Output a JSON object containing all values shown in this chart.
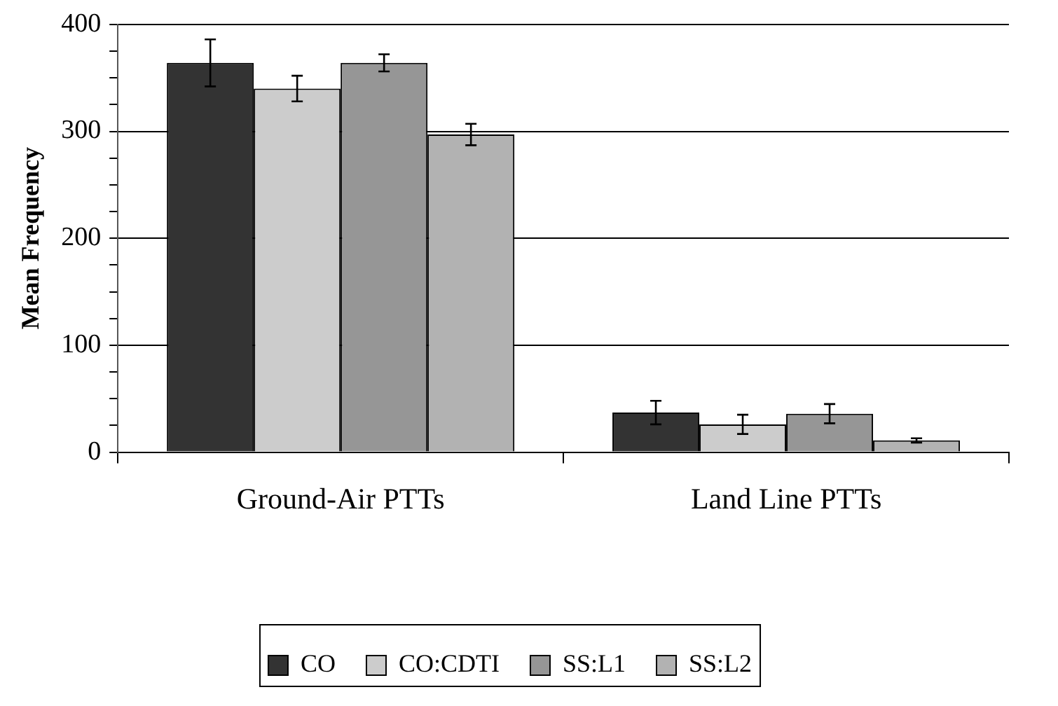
{
  "chart_data": {
    "type": "bar",
    "ylabel": "Mean Frequency",
    "categories": [
      "Ground-Air PTTs",
      "Land Line PTTs"
    ],
    "series": [
      {
        "name": "CO",
        "color": "#333333",
        "values": [
          364,
          37
        ],
        "errors": [
          22,
          11
        ]
      },
      {
        "name": "CO:CDTI",
        "color": "#cccccc",
        "values": [
          340,
          26
        ],
        "errors": [
          12,
          9
        ]
      },
      {
        "name": "SS:L1",
        "color": "#969696",
        "values": [
          364,
          36
        ],
        "errors": [
          8,
          9
        ]
      },
      {
        "name": "SS:L2",
        "color": "#b2b2b2",
        "values": [
          297,
          11
        ],
        "errors": [
          10,
          2
        ]
      }
    ],
    "ylim": [
      0,
      400
    ],
    "yticks": [
      0,
      {
        "value": 25,
        "label": null
      },
      {
        "value": 50,
        "label": null
      },
      {
        "value": 75,
        "label": null
      },
      100,
      {
        "value": 125,
        "label": null
      },
      {
        "value": 150,
        "label": null
      },
      {
        "value": 175,
        "label": null
      },
      200,
      {
        "value": 225,
        "label": null
      },
      {
        "value": 250,
        "label": null
      },
      {
        "value": 275,
        "label": null
      },
      300,
      {
        "value": 325,
        "label": null
      },
      {
        "value": 350,
        "label": null
      },
      {
        "value": 375,
        "label": null
      },
      400
    ],
    "grid": "y",
    "legend": "bottom"
  }
}
